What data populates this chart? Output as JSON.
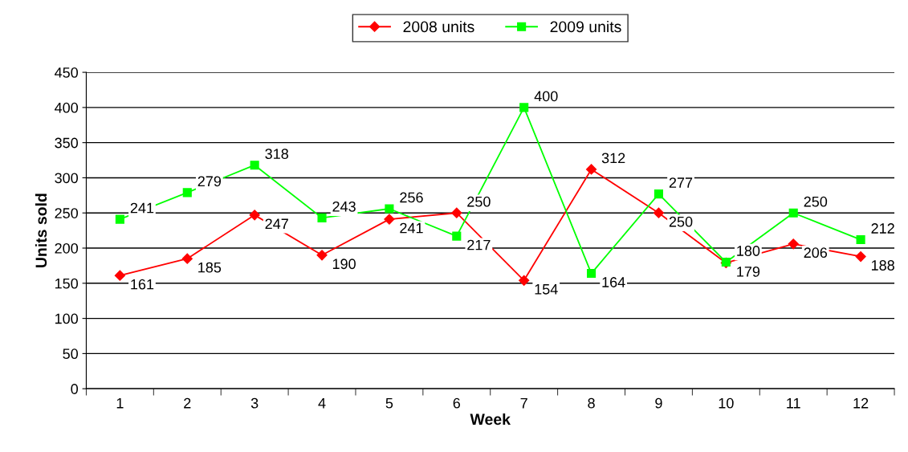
{
  "chart_data": {
    "type": "line",
    "xlabel": "Week",
    "ylabel": "Units sold",
    "categories": [
      "1",
      "2",
      "3",
      "4",
      "5",
      "6",
      "7",
      "8",
      "9",
      "10",
      "11",
      "12"
    ],
    "series": [
      {
        "name": "2008 units",
        "color": "#ff0000",
        "marker": "diamond",
        "values": [
          161,
          185,
          247,
          190,
          241,
          250,
          154,
          312,
          250,
          179,
          206,
          188
        ]
      },
      {
        "name": "2009 units",
        "color": "#00ff00",
        "marker": "square",
        "values": [
          241,
          279,
          318,
          243,
          256,
          217,
          400,
          164,
          277,
          180,
          250,
          212
        ]
      }
    ],
    "ylim": [
      0,
      450
    ],
    "yticks": [
      0,
      50,
      100,
      150,
      200,
      250,
      300,
      350,
      400,
      450
    ],
    "grid": "y",
    "legend": "top",
    "data_labels": true,
    "line_style": "solid"
  }
}
